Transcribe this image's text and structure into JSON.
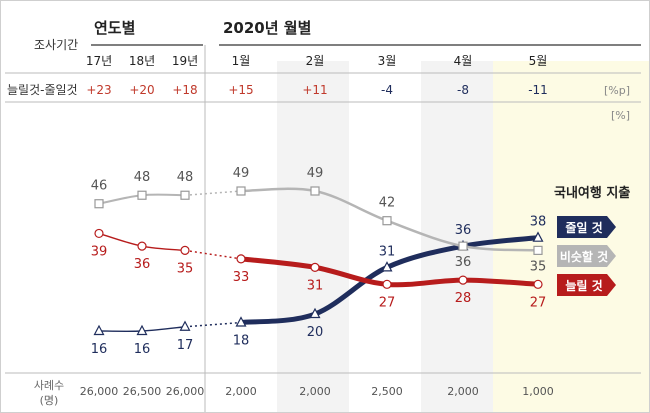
{
  "header": {
    "survey_period_label": "조사기간",
    "yearly_title": "연도별",
    "monthly_title": "2020년 월별",
    "net_label": "늘릴것-줄일것",
    "net_unit": "[%p]",
    "percent_unit": "[%]",
    "sample_label_line1": "사례수",
    "sample_label_line2": "(명)"
  },
  "chart_data": {
    "type": "line",
    "title": "국내여행 지출",
    "categories": [
      "17년",
      "18년",
      "19년",
      "1월",
      "2월",
      "3월",
      "4월",
      "5월"
    ],
    "yearly_count": 3,
    "series": [
      {
        "name": "줄일 것",
        "values": [
          16,
          16,
          17,
          18,
          20,
          31,
          36,
          38
        ],
        "color": "#1f2d5c",
        "marker": "triangle"
      },
      {
        "name": "비슷할 것",
        "values": [
          46,
          48,
          48,
          49,
          49,
          42,
          36,
          35
        ],
        "color": "#b5b5b5",
        "marker": "square"
      },
      {
        "name": "늘릴 것",
        "values": [
          39,
          36,
          35,
          33,
          31,
          27,
          28,
          27
        ],
        "color": "#b71c1c",
        "marker": "circle"
      }
    ],
    "net_values": [
      "+23",
      "+20",
      "+18",
      "+15",
      "+11",
      "-4",
      "-8",
      "-11"
    ],
    "sample_sizes": [
      "26,000",
      "26,500",
      "26,000",
      "2,000",
      "2,000",
      "2,500",
      "2,000",
      "1,000"
    ],
    "ylim": [
      10,
      55
    ],
    "grid": false,
    "legend_placement": "right"
  },
  "colors": {
    "negative": "#1f2d5c",
    "positive": "#c0392b",
    "highlight": "#fdfbe4",
    "band": "#f3f3f3"
  }
}
